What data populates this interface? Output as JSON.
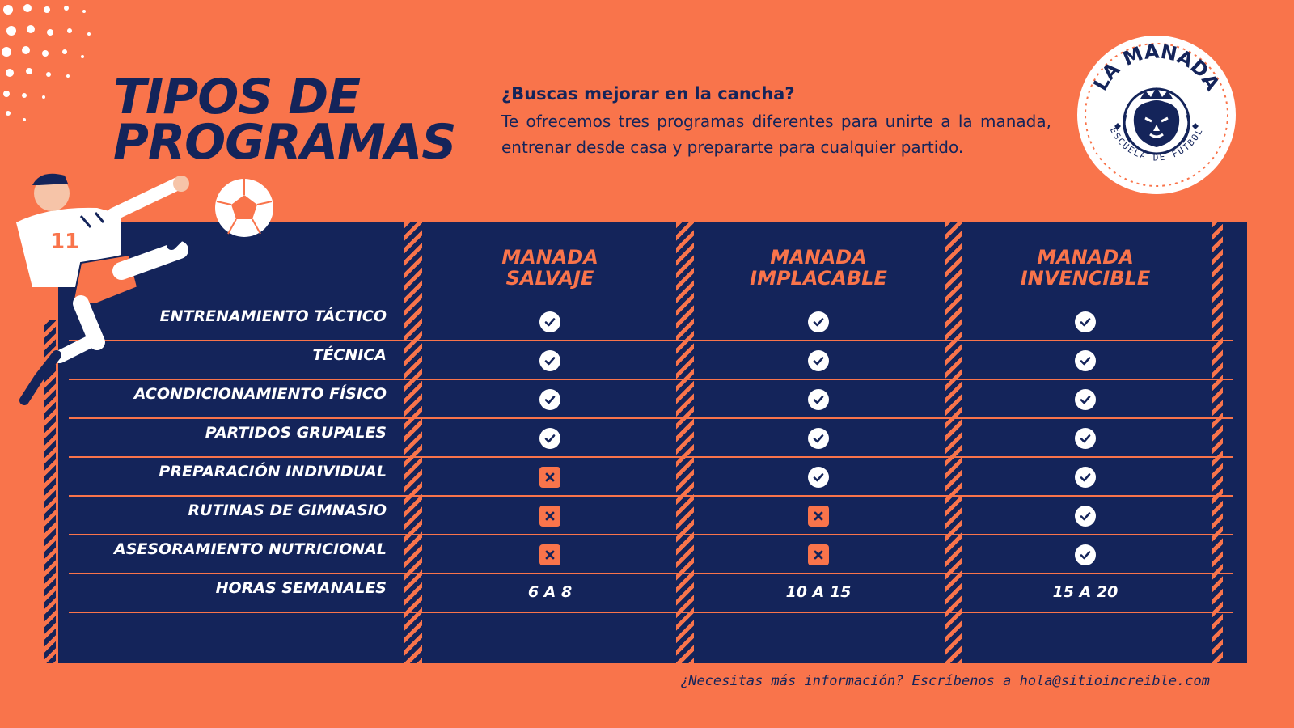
{
  "header": {
    "title_line1": "TIPOS DE",
    "title_line2": "PROGRAMAS",
    "question": "¿Buscas mejorar en la cancha?",
    "description": "Te ofrecemos tres programas diferentes para unirte a la manada, entrenar desde casa y prepararte para cualquier partido."
  },
  "logo": {
    "name": "LA MANADA",
    "subtitle": "ESCUELA DE FÚTBOL",
    "icon": "lion-crest-icon"
  },
  "programs": [
    {
      "line1": "MANADA",
      "line2": "SALVAJE"
    },
    {
      "line1": "MANADA",
      "line2": "IMPLACABLE"
    },
    {
      "line1": "MANADA",
      "line2": "INVENCIBLE"
    }
  ],
  "rows": [
    {
      "label": "ENTRENAMIENTO TÁCTICO",
      "values": [
        "check",
        "check",
        "check"
      ]
    },
    {
      "label": "TÉCNICA",
      "values": [
        "check",
        "check",
        "check"
      ]
    },
    {
      "label": "ACONDICIONAMIENTO FÍSICO",
      "values": [
        "check",
        "check",
        "check"
      ]
    },
    {
      "label": "PARTIDOS GRUPALES",
      "values": [
        "check",
        "check",
        "check"
      ]
    },
    {
      "label": "PREPARACIÓN INDIVIDUAL",
      "values": [
        "cross",
        "check",
        "check"
      ]
    },
    {
      "label": "RUTINAS DE GIMNASIO",
      "values": [
        "cross",
        "cross",
        "check"
      ]
    },
    {
      "label": "ASESORAMIENTO NUTRICIONAL",
      "values": [
        "cross",
        "cross",
        "check"
      ]
    }
  ],
  "hours": {
    "label": "HORAS SEMANALES",
    "values": [
      "6 A 8",
      "10 A 15",
      "15 A 20"
    ]
  },
  "footer": {
    "text": "¿Necesitas más información? Escríbenos a hola@sitioincreible.com"
  },
  "colors": {
    "background": "#F9744B",
    "navy": "#14245A",
    "white": "#FFFFFF"
  }
}
